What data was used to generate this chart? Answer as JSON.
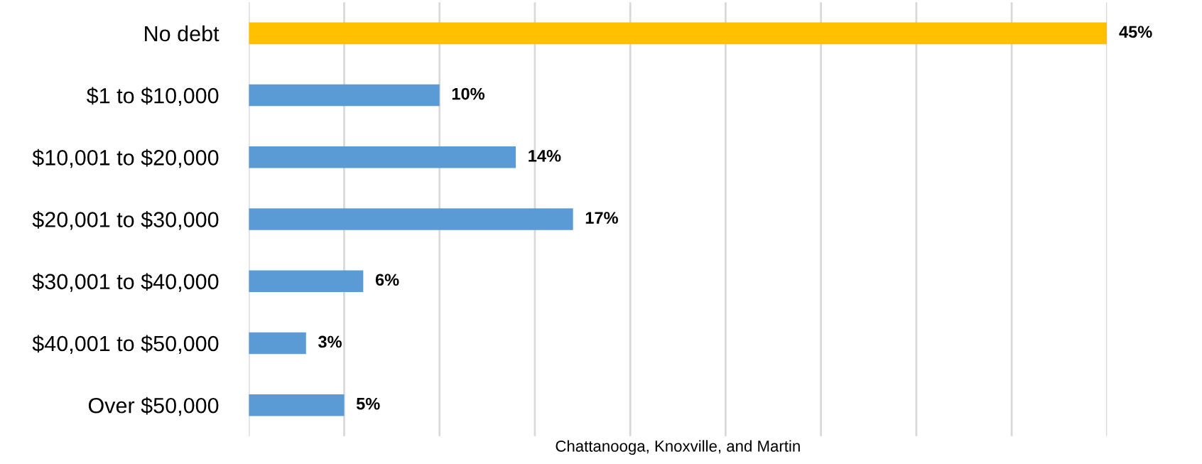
{
  "chart_data": {
    "type": "bar",
    "orientation": "horizontal",
    "xlabel": "Chattanooga, Knoxville, and Martin",
    "categories": [
      "No debt",
      "$1 to $10,000",
      "$10,001 to $20,000",
      "$20,001 to $30,000",
      "$30,001 to $40,000",
      "$40,001 to $50,000",
      "Over $50,000"
    ],
    "values": [
      45,
      10,
      14,
      17,
      6,
      3,
      5
    ],
    "colors": [
      "#ffc000",
      "#5b9bd5",
      "#5b9bd5",
      "#5b9bd5",
      "#5b9bd5",
      "#5b9bd5",
      "#5b9bd5"
    ],
    "value_labels": [
      "45%",
      "10%",
      "14%",
      "17%",
      "6%",
      "3%",
      "5%"
    ],
    "xlim": [
      0,
      45
    ],
    "xticks": [
      {
        "value": 0,
        "label": null
      },
      {
        "value": 5,
        "label": null
      },
      {
        "value": 10,
        "label": null
      },
      {
        "value": 15,
        "label": null
      },
      {
        "value": 20,
        "label": null
      },
      {
        "value": 25,
        "label": null
      },
      {
        "value": 30,
        "label": null
      },
      {
        "value": 35,
        "label": null
      },
      {
        "value": 40,
        "label": null
      },
      {
        "value": 45,
        "label": null
      }
    ],
    "grid": "x",
    "tick_labels": "y"
  }
}
